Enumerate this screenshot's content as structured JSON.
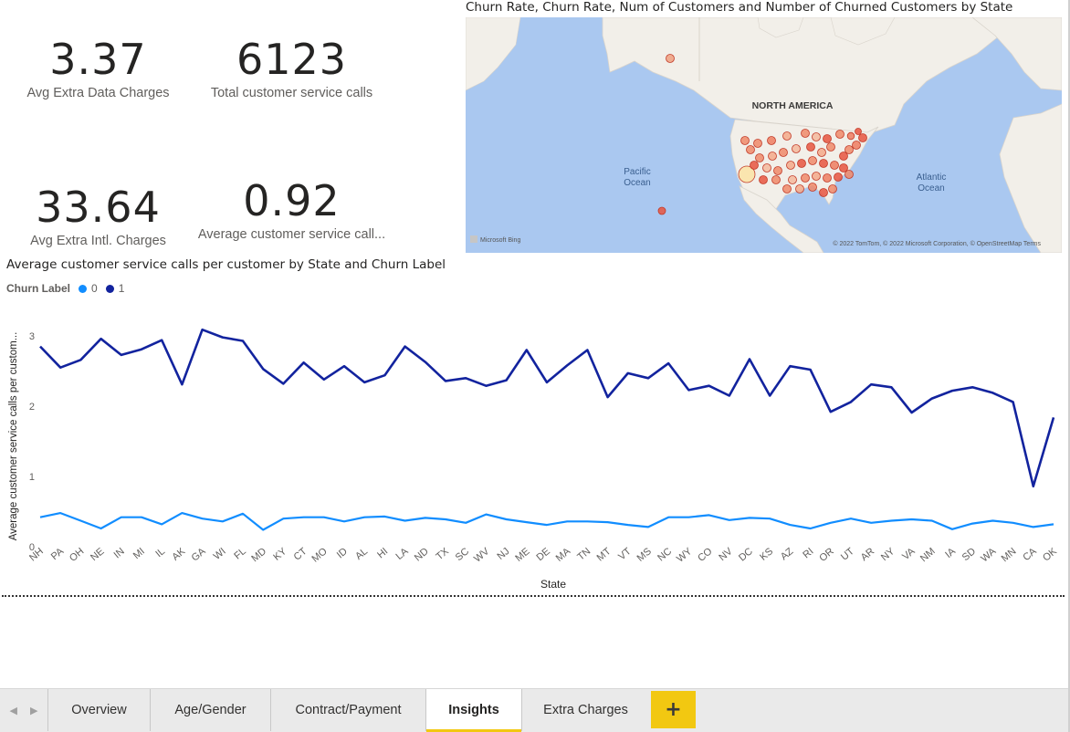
{
  "kpis": {
    "avg_extra_data": {
      "value": "3.37",
      "label": "Avg Extra Data Charges"
    },
    "total_service_calls": {
      "value": "6123",
      "label": "Total customer service calls"
    },
    "avg_extra_intl": {
      "value": "33.64",
      "label": "Avg Extra Intl. Charges"
    },
    "avg_service_calls": {
      "value": "0.92",
      "label": "Average customer service call..."
    }
  },
  "map": {
    "title": "Churn Rate, Churn Rate, Num of Customers and Number of Churned Customers by State",
    "labels": {
      "continent": "NORTH AMERICA",
      "pacific": "Pacific\nOcean",
      "atlantic": "Atlantic\nOcean"
    },
    "attribution": "© 2022 TomTom, © 2022 Microsoft Corporation, © OpenStreetMap  Terms",
    "provider": "Microsoft Bing",
    "colors": {
      "ocean": "#aac8f0",
      "land": "#f2efe9",
      "bubble": "#e8553f"
    }
  },
  "line_chart": {
    "title": "Average customer service calls per customer by State and Churn Label",
    "legend_title": "Churn Label",
    "legend_items": [
      {
        "label": "0",
        "color": "#118dff"
      },
      {
        "label": "1",
        "color": "#12239e"
      }
    ]
  },
  "chart_data": {
    "type": "line",
    "title": "Average customer service calls per customer by State and Churn Label",
    "xlabel": "State",
    "ylabel": "Average customer service calls per custom...",
    "ylim": [
      0,
      3.3
    ],
    "yticks": [
      0,
      1,
      2,
      3
    ],
    "grid": false,
    "legend_position": "top-left",
    "categories": [
      "NH",
      "PA",
      "OH",
      "NE",
      "IN",
      "MI",
      "IL",
      "AK",
      "GA",
      "WI",
      "FL",
      "MD",
      "KY",
      "CT",
      "MO",
      "ID",
      "AL",
      "HI",
      "LA",
      "ND",
      "TX",
      "SC",
      "WV",
      "NJ",
      "ME",
      "DE",
      "MA",
      "TN",
      "MT",
      "VT",
      "MS",
      "NC",
      "WY",
      "CO",
      "NV",
      "DC",
      "KS",
      "AZ",
      "RI",
      "OR",
      "UT",
      "AR",
      "NY",
      "VA",
      "NM",
      "IA",
      "SD",
      "WA",
      "MN",
      "CA",
      "OK"
    ],
    "series": [
      {
        "name": "0",
        "color": "#118dff",
        "values": [
          0.42,
          0.48,
          0.37,
          0.26,
          0.42,
          0.42,
          0.32,
          0.48,
          0.4,
          0.36,
          0.47,
          0.24,
          0.4,
          0.42,
          0.42,
          0.36,
          0.42,
          0.43,
          0.37,
          0.41,
          0.39,
          0.34,
          0.46,
          0.39,
          0.35,
          0.31,
          0.36,
          0.36,
          0.35,
          0.31,
          0.28,
          0.42,
          0.42,
          0.45,
          0.38,
          0.41,
          0.4,
          0.31,
          0.26,
          0.34,
          0.4,
          0.34,
          0.37,
          0.39,
          0.37,
          0.25,
          0.33,
          0.37,
          0.34,
          0.28,
          0.32
        ]
      },
      {
        "name": "1",
        "color": "#12239e",
        "values": [
          2.85,
          2.55,
          2.66,
          2.96,
          2.73,
          2.81,
          2.94,
          2.31,
          3.09,
          2.98,
          2.93,
          2.53,
          2.32,
          2.62,
          2.38,
          2.57,
          2.34,
          2.44,
          2.85,
          2.63,
          2.36,
          2.4,
          2.29,
          2.37,
          2.8,
          2.34,
          2.58,
          2.8,
          2.13,
          2.47,
          2.4,
          2.61,
          2.23,
          2.29,
          2.15,
          2.67,
          2.15,
          2.57,
          2.52,
          1.92,
          2.06,
          2.31,
          2.27,
          1.91,
          2.11,
          2.22,
          2.27,
          2.19,
          2.06,
          0.86,
          1.84
        ]
      }
    ]
  },
  "tabs": {
    "items": [
      {
        "label": "Overview"
      },
      {
        "label": "Age/Gender"
      },
      {
        "label": "Contract/Payment"
      },
      {
        "label": "Insights"
      },
      {
        "label": "Extra Charges"
      }
    ],
    "active": "Insights",
    "add_label": "+"
  }
}
